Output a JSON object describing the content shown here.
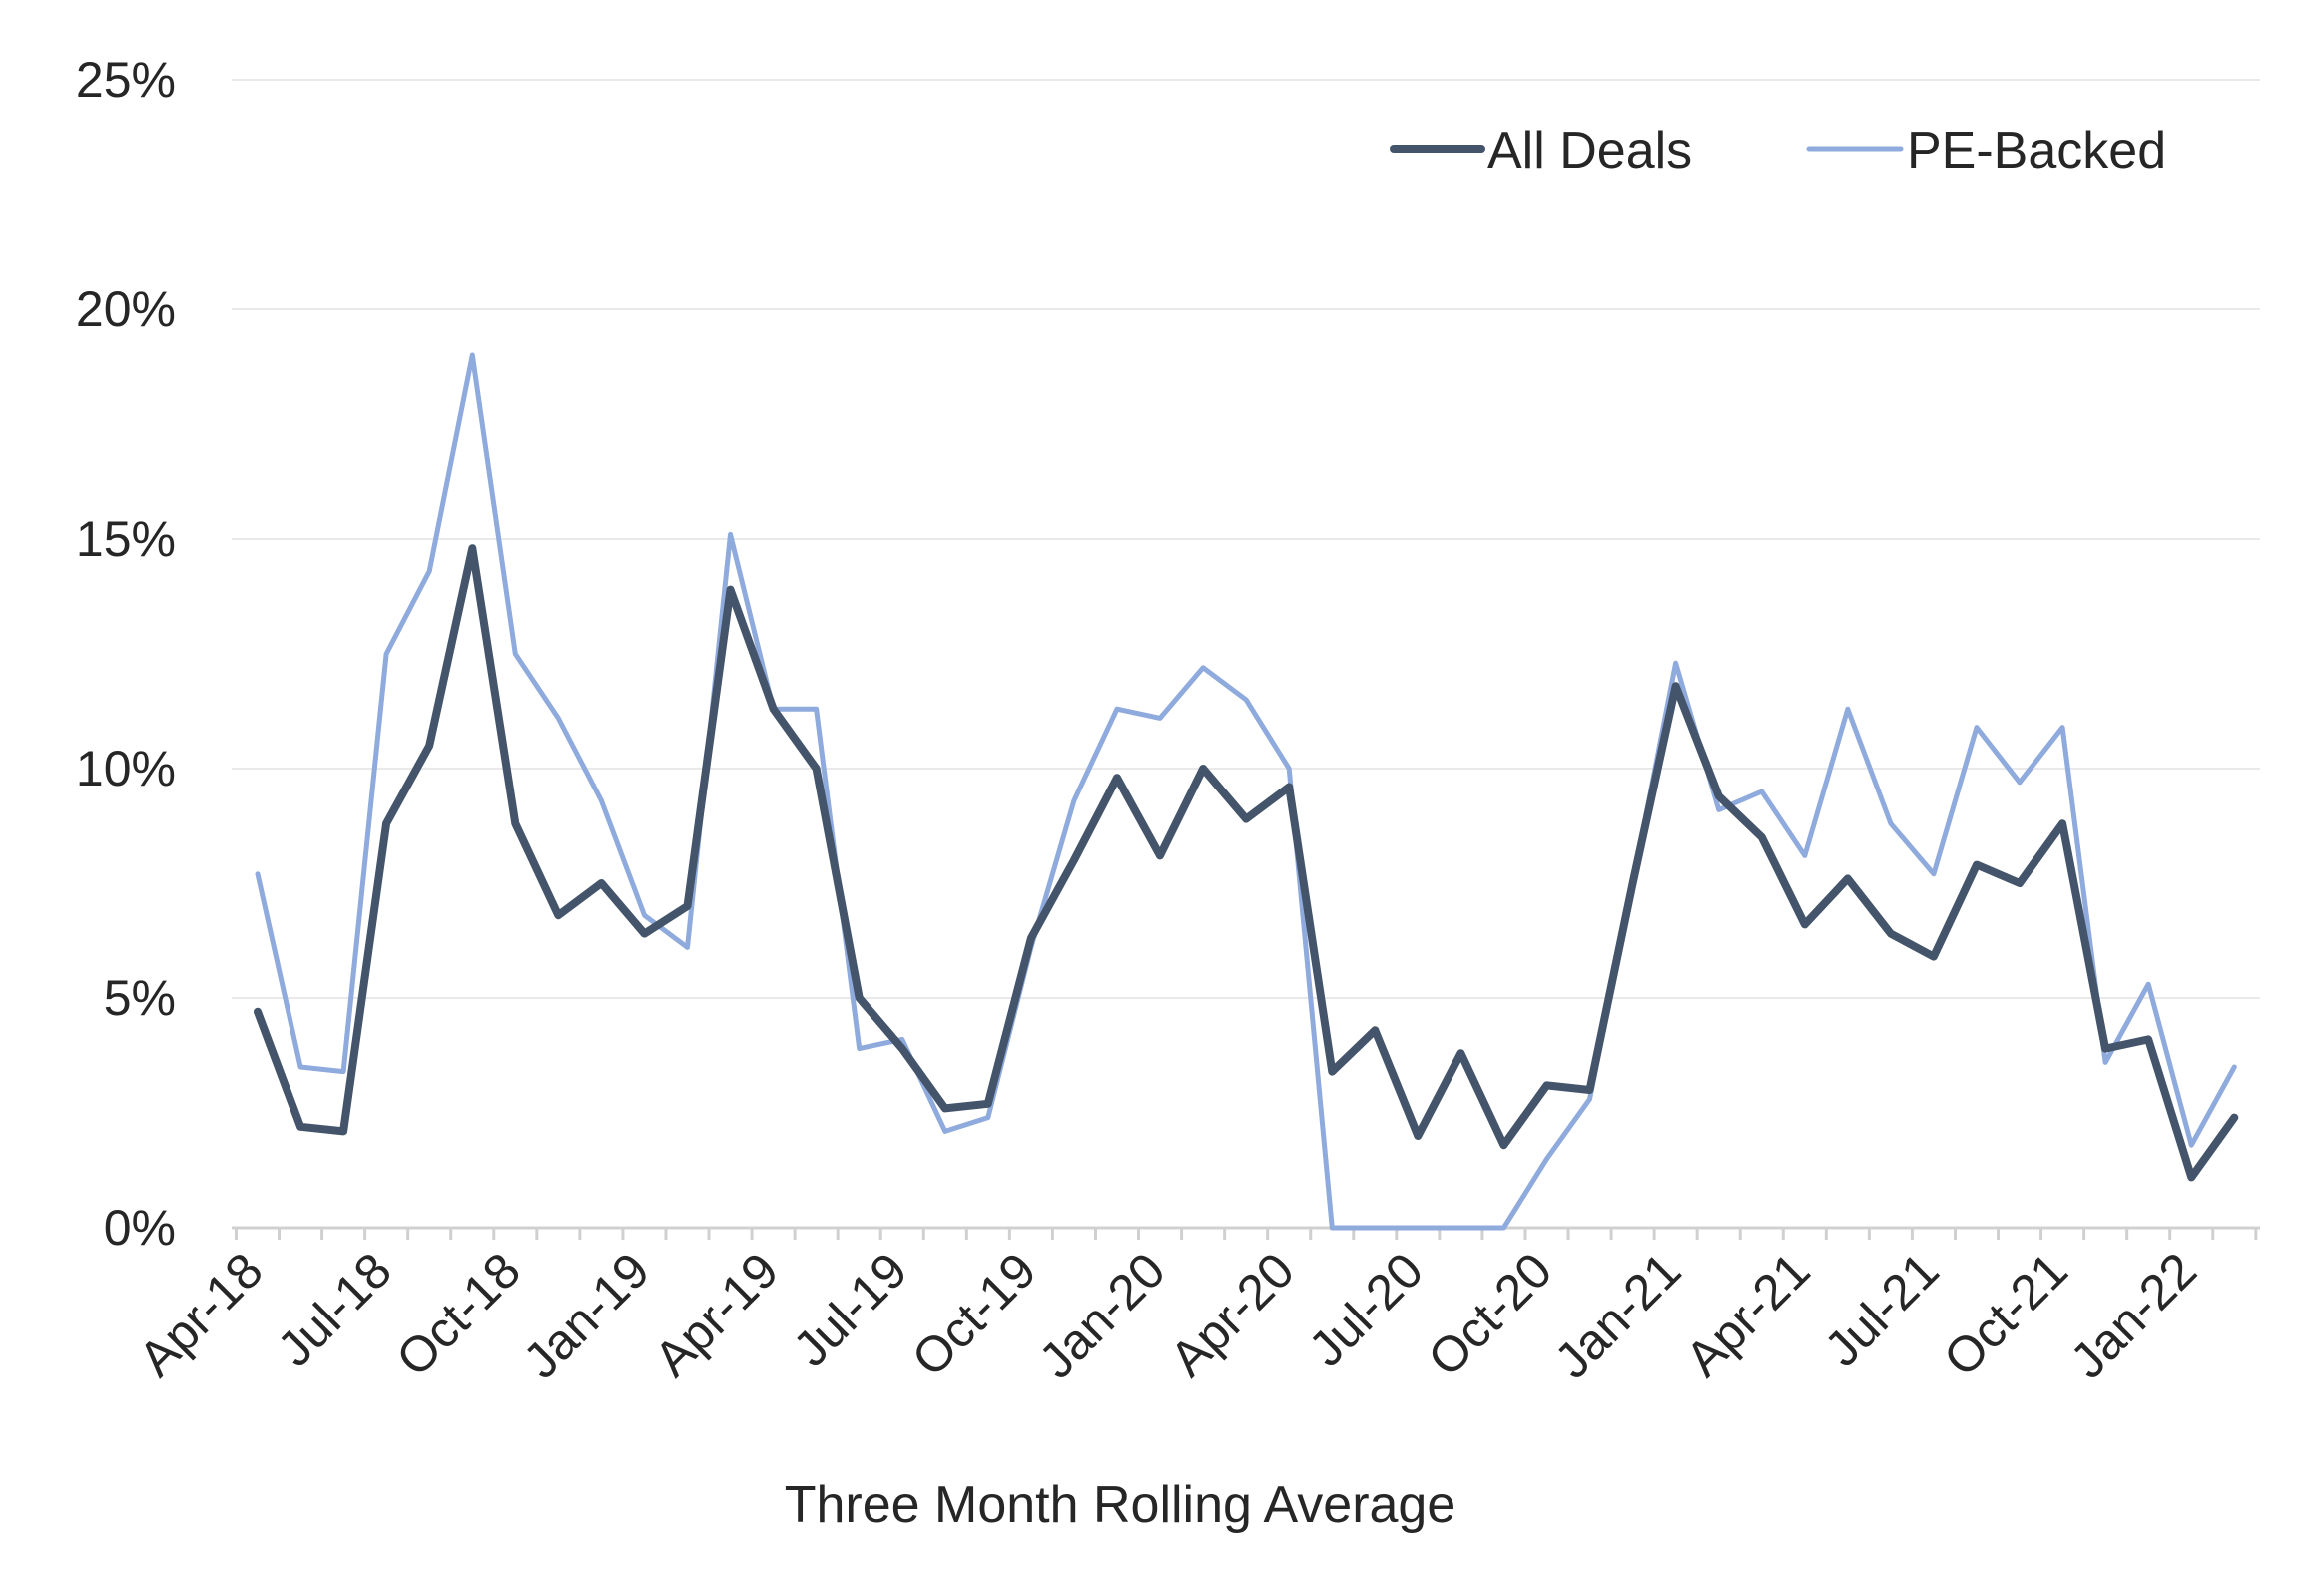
{
  "chart_data": {
    "type": "line",
    "xlabel": "Three Month Rolling Average",
    "ylabel": "",
    "ylim": [
      0,
      25
    ],
    "y_ticks": [
      0,
      5,
      10,
      15,
      20,
      25
    ],
    "y_tick_labels": [
      "0%",
      "5%",
      "10%",
      "15%",
      "20%",
      "25%"
    ],
    "grid": "horizontal",
    "legend_position": "top-right",
    "x": [
      "Apr-18",
      "May-18",
      "Jun-18",
      "Jul-18",
      "Aug-18",
      "Sep-18",
      "Oct-18",
      "Nov-18",
      "Dec-18",
      "Jan-19",
      "Feb-19",
      "Mar-19",
      "Apr-19",
      "May-19",
      "Jun-19",
      "Jul-19",
      "Aug-19",
      "Sep-19",
      "Oct-19",
      "Nov-19",
      "Dec-19",
      "Jan-20",
      "Feb-20",
      "Mar-20",
      "Apr-20",
      "May-20",
      "Jun-20",
      "Jul-20",
      "Aug-20",
      "Sep-20",
      "Oct-20",
      "Nov-20",
      "Dec-20",
      "Jan-21",
      "Feb-21",
      "Mar-21",
      "Apr-21",
      "May-21",
      "Jun-21",
      "Jul-21",
      "Aug-21",
      "Sep-21",
      "Oct-21",
      "Nov-21",
      "Dec-21",
      "Jan-22",
      "Feb-22"
    ],
    "x_tick_labels": [
      "Apr-18",
      "Jul-18",
      "Oct-18",
      "Jan-19",
      "Apr-19",
      "Jul-19",
      "Oct-19",
      "Jan-20",
      "Apr-20",
      "Jul-20",
      "Oct-20",
      "Jan-21",
      "Apr-21",
      "Jul-21",
      "Oct-21",
      "Jan-22"
    ],
    "series": [
      {
        "name": "All Deals",
        "color": "#44546a",
        "values": [
          4.7,
          2.2,
          2.1,
          8.8,
          10.5,
          14.8,
          8.8,
          6.8,
          7.5,
          6.4,
          7.0,
          13.9,
          11.3,
          10.0,
          5.0,
          3.9,
          2.6,
          2.7,
          6.3,
          8.0,
          9.8,
          8.1,
          10.0,
          8.9,
          9.6,
          3.4,
          4.3,
          2.0,
          3.8,
          1.8,
          3.1,
          3.0,
          7.5,
          11.8,
          9.4,
          8.5,
          6.6,
          7.6,
          6.4,
          5.9,
          7.9,
          7.5,
          8.8,
          3.9,
          4.1,
          1.1,
          2.4
        ]
      },
      {
        "name": "PE-Backed",
        "color": "#8faadc",
        "values": [
          7.7,
          3.5,
          3.4,
          12.5,
          14.3,
          19.0,
          12.5,
          11.1,
          9.3,
          6.8,
          6.1,
          15.1,
          11.3,
          11.3,
          3.9,
          4.1,
          2.1,
          2.4,
          6.1,
          9.3,
          11.3,
          11.1,
          12.2,
          11.5,
          10.0,
          0,
          0,
          0,
          0,
          0,
          1.5,
          2.8,
          7.5,
          12.3,
          9.1,
          9.5,
          8.1,
          11.3,
          8.8,
          7.7,
          10.9,
          9.7,
          10.9,
          3.6,
          5.3,
          1.8,
          3.5
        ]
      }
    ]
  }
}
